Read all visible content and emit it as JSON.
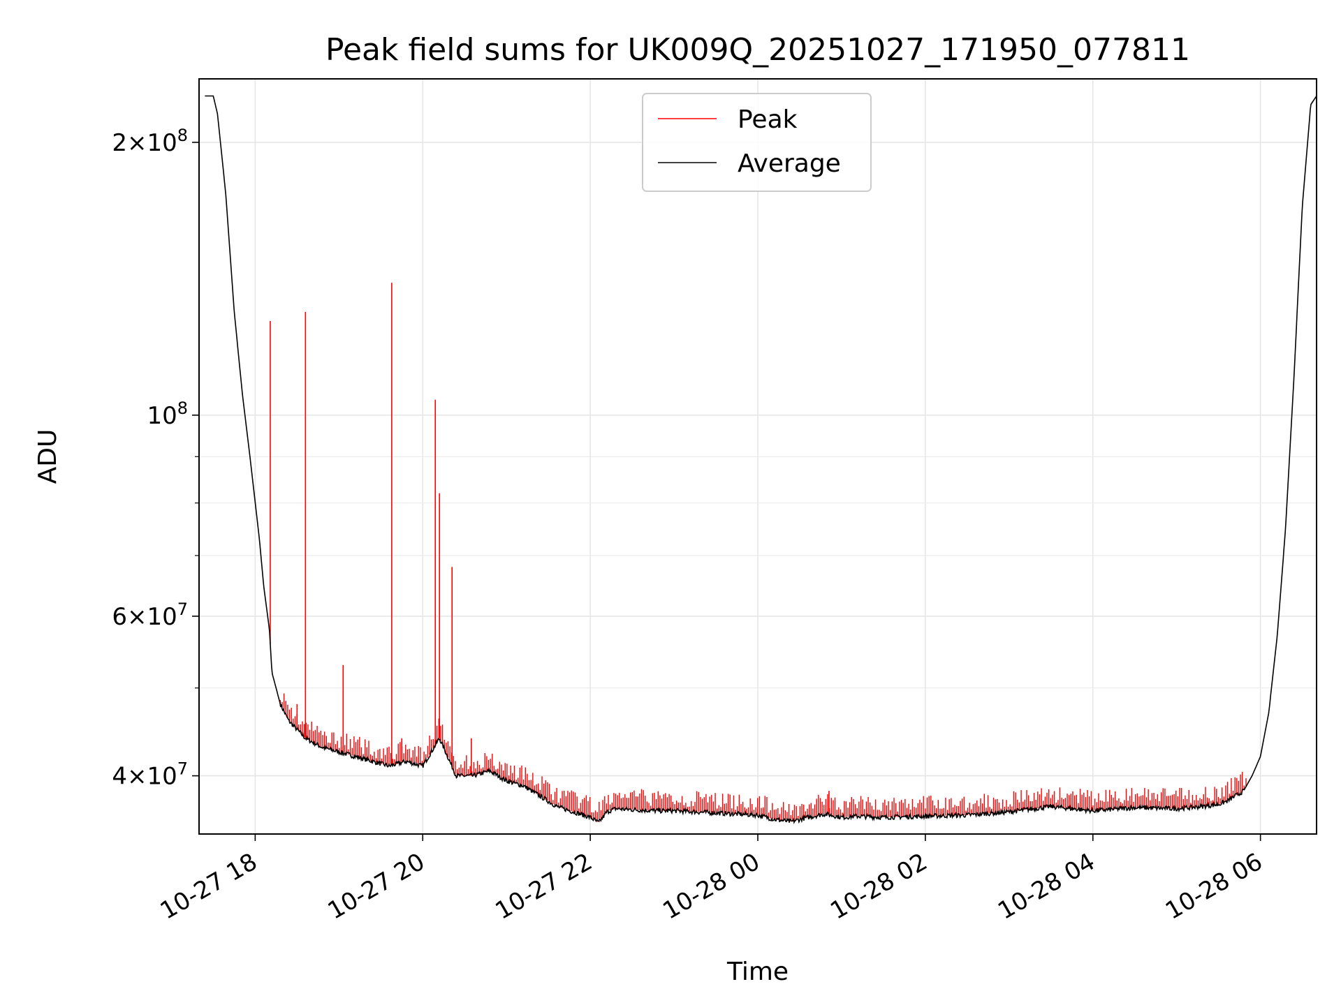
{
  "chart_data": {
    "type": "line",
    "title": "Peak field sums for UK009Q_20251027_171950_077811",
    "xlabel": "Time",
    "ylabel": "ADU",
    "yscale": "log",
    "xlim_hours": [
      -0.67,
      12.67
    ],
    "ylim": [
      34500000,
      235000000
    ],
    "grid": true,
    "legend_position": "top-center",
    "x_ticks": [
      {
        "hours": 0,
        "label": "10-27 18"
      },
      {
        "hours": 2,
        "label": "10-27 20"
      },
      {
        "hours": 4,
        "label": "10-27 22"
      },
      {
        "hours": 6,
        "label": "10-28 00"
      },
      {
        "hours": 8,
        "label": "10-28 02"
      },
      {
        "hours": 10,
        "label": "10-28 04"
      },
      {
        "hours": 12,
        "label": "10-28 06"
      }
    ],
    "y_major_ticks": [
      {
        "value": 40000000,
        "mant": "4",
        "exp": "7"
      },
      {
        "value": 60000000,
        "mant": "6",
        "exp": "7"
      },
      {
        "value": 100000000,
        "mant": "",
        "exp": "8"
      },
      {
        "value": 200000000,
        "mant": "2",
        "exp": "8"
      }
    ],
    "y_minor_ticks": [
      50000000,
      70000000,
      80000000,
      90000000
    ],
    "series": [
      {
        "name": "Average",
        "color": "#000000",
        "x": [
          -0.6,
          -0.5,
          -0.45,
          -0.35,
          -0.25,
          -0.15,
          -0.05,
          0.05,
          0.1,
          0.17,
          0.2,
          0.3,
          0.4,
          0.6,
          0.8,
          1.0,
          1.2,
          1.4,
          1.6,
          1.8,
          2.0,
          2.2,
          2.4,
          2.6,
          2.8,
          3.0,
          3.2,
          3.4,
          3.6,
          3.8,
          4.0,
          4.1,
          4.2,
          4.3,
          4.5,
          4.8,
          5.0,
          5.5,
          6.0,
          6.2,
          6.4,
          6.6,
          6.8,
          7.0,
          7.2,
          7.5,
          8.0,
          8.5,
          9.0,
          9.5,
          10.0,
          10.5,
          11.0,
          11.3,
          11.5,
          11.6,
          11.7,
          11.8,
          11.9,
          12.0,
          12.1,
          12.2,
          12.3,
          12.4,
          12.5,
          12.6,
          12.67
        ],
        "y": [
          225000000,
          225000000,
          215000000,
          175000000,
          130000000,
          105000000,
          88000000,
          73000000,
          65000000,
          58000000,
          52000000,
          48000000,
          46000000,
          44000000,
          43000000,
          42500000,
          42000000,
          41500000,
          41000000,
          41500000,
          41000000,
          44000000,
          40000000,
          40000000,
          40500000,
          39500000,
          39000000,
          38000000,
          37000000,
          36500000,
          36000000,
          35500000,
          36500000,
          36800000,
          36700000,
          36600000,
          36600000,
          36400000,
          36200000,
          35800000,
          35600000,
          36000000,
          36300000,
          36000000,
          36100000,
          36000000,
          36100000,
          36200000,
          36500000,
          37000000,
          36600000,
          36900000,
          36800000,
          37000000,
          37200000,
          37500000,
          38000000,
          38500000,
          40000000,
          42000000,
          47000000,
          57000000,
          75000000,
          110000000,
          170000000,
          220000000,
          225000000
        ]
      },
      {
        "name": "Peak",
        "color": "#ff0000",
        "spikes": [
          {
            "x": 0.18,
            "y": 127000000
          },
          {
            "x": 0.5,
            "y": 48000000
          },
          {
            "x": 0.6,
            "y": 130000000
          },
          {
            "x": 1.05,
            "y": 53000000
          },
          {
            "x": 1.63,
            "y": 140000000
          },
          {
            "x": 1.75,
            "y": 44000000
          },
          {
            "x": 2.15,
            "y": 104000000
          },
          {
            "x": 2.2,
            "y": 82000000
          },
          {
            "x": 2.35,
            "y": 68000000
          },
          {
            "x": 2.58,
            "y": 44000000
          },
          {
            "x": 6.85,
            "y": 38500000
          }
        ]
      }
    ]
  }
}
